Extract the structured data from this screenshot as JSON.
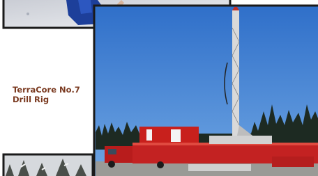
{
  "caption": {
    "lines": [
      "TerraCore No.7",
      "Drill Rig"
    ]
  }
}
